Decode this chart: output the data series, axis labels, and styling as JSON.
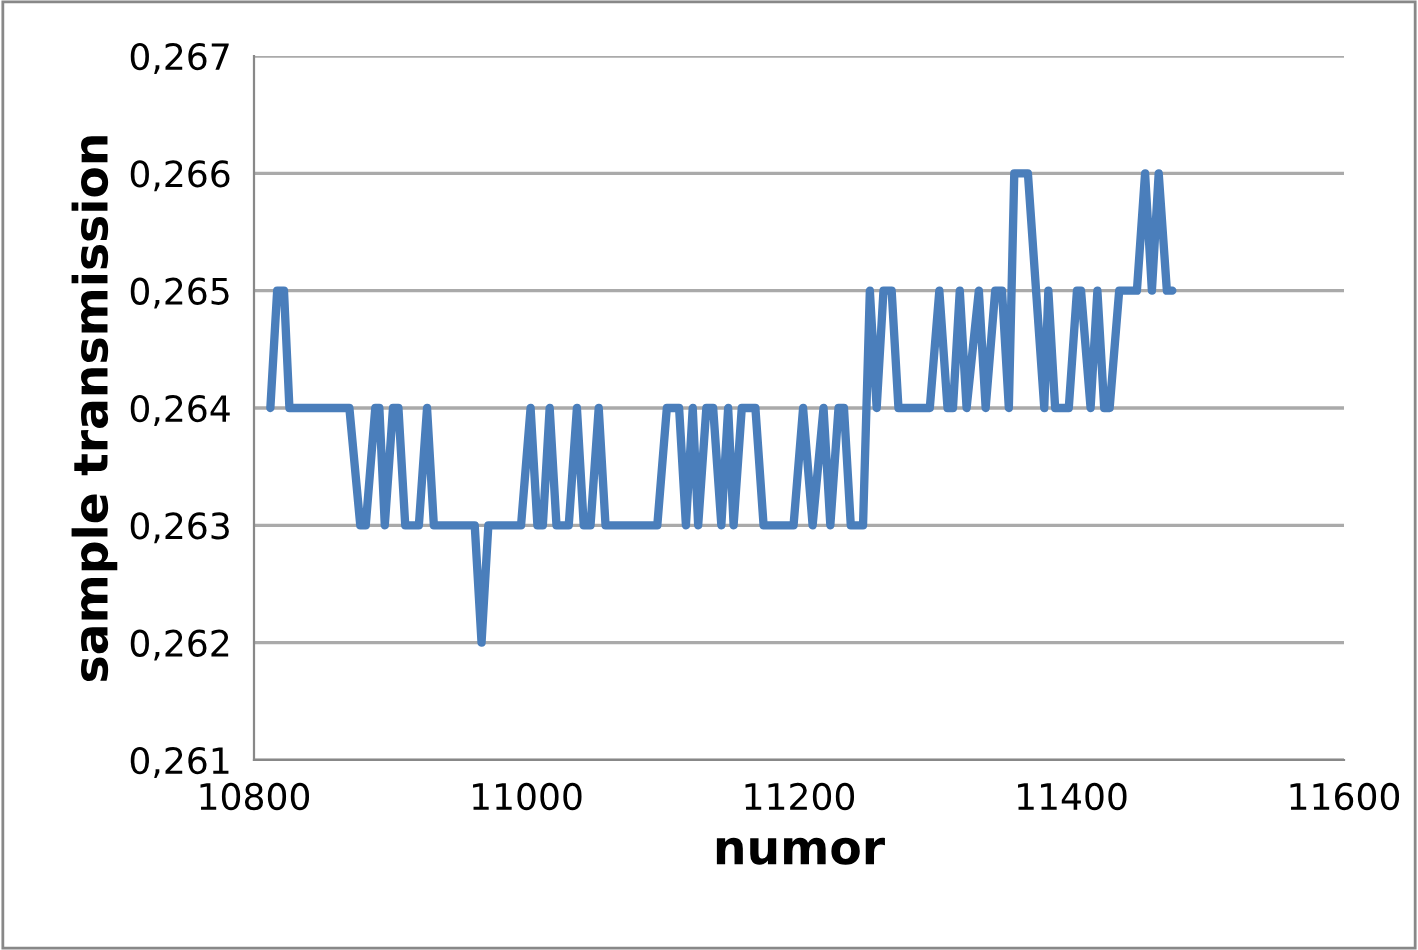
{
  "chart_data": {
    "type": "line",
    "xlabel": "numor",
    "ylabel": "sample transmission",
    "xlim": [
      10800,
      11600
    ],
    "xticks": [
      10800,
      11000,
      11200,
      11400,
      11600
    ],
    "ylim": [
      0.261,
      0.267
    ],
    "yticks": [
      {
        "value": 0.261,
        "label": "0,261"
      },
      {
        "value": 0.262,
        "label": "0,262"
      },
      {
        "value": 0.263,
        "label": "0,263"
      },
      {
        "value": 0.264,
        "label": "0,264"
      },
      {
        "value": 0.265,
        "label": "0,265"
      },
      {
        "value": 0.266,
        "label": "0,266"
      },
      {
        "value": 0.267,
        "label": "0,267"
      }
    ],
    "grid": "y",
    "marker": "none",
    "line_style": "solid",
    "series": [
      {
        "color": "#4a7ebb",
        "x": [
          10812,
          10817,
          10822,
          10826,
          10870,
          10878,
          10882,
          10889,
          10892,
          10896,
          10902,
          10906,
          10911,
          10921,
          10927,
          10932,
          10962,
          10967,
          10972,
          10996,
          11003,
          11008,
          11012,
          11017,
          11022,
          11031,
          11037,
          11042,
          11047,
          11053,
          11058,
          11096,
          11103,
          11112,
          11117,
          11122,
          11126,
          11132,
          11137,
          11143,
          11148,
          11152,
          11158,
          11168,
          11174,
          11196,
          11203,
          11210,
          11218,
          11223,
          11229,
          11233,
          11238,
          11247,
          11252,
          11257,
          11262,
          11268,
          11273,
          11296,
          11303,
          11309,
          11313,
          11318,
          11323,
          11332,
          11337,
          11344,
          11349,
          11354,
          11358,
          11368,
          11380,
          11383,
          11388,
          11398,
          11404,
          11407,
          11414,
          11419,
          11424,
          11428,
          11435,
          11448,
          11454,
          11459,
          11464,
          11470,
          11474
        ],
        "values": [
          0.264,
          0.265,
          0.265,
          0.264,
          0.264,
          0.263,
          0.263,
          0.264,
          0.264,
          0.263,
          0.264,
          0.264,
          0.263,
          0.263,
          0.264,
          0.263,
          0.263,
          0.262,
          0.263,
          0.263,
          0.264,
          0.263,
          0.263,
          0.264,
          0.263,
          0.263,
          0.264,
          0.263,
          0.263,
          0.264,
          0.263,
          0.263,
          0.264,
          0.264,
          0.263,
          0.264,
          0.263,
          0.264,
          0.264,
          0.263,
          0.264,
          0.263,
          0.264,
          0.264,
          0.263,
          0.263,
          0.264,
          0.263,
          0.264,
          0.263,
          0.264,
          0.264,
          0.263,
          0.263,
          0.265,
          0.264,
          0.265,
          0.265,
          0.264,
          0.264,
          0.265,
          0.264,
          0.264,
          0.265,
          0.264,
          0.265,
          0.264,
          0.265,
          0.265,
          0.264,
          0.266,
          0.266,
          0.264,
          0.265,
          0.264,
          0.264,
          0.265,
          0.265,
          0.264,
          0.265,
          0.264,
          0.264,
          0.265,
          0.265,
          0.266,
          0.265,
          0.266,
          0.265,
          0.265
        ]
      }
    ]
  }
}
